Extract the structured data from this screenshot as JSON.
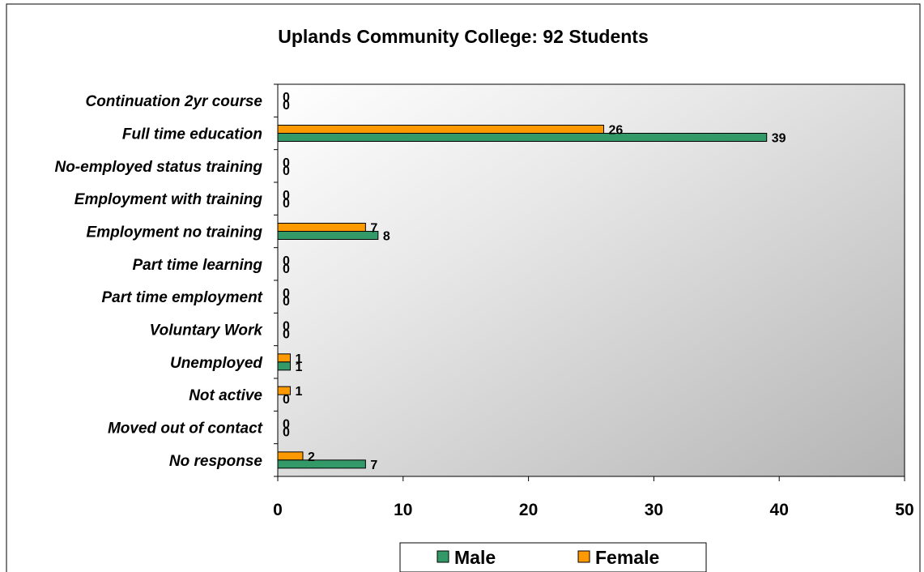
{
  "chart_data": {
    "type": "bar",
    "orientation": "horizontal",
    "title": "Uplands Community College: 92 Students",
    "categories": [
      "Continuation 2yr course",
      "Full time education",
      "No-employed status training",
      "Employment with training",
      "Employment no training",
      "Part time learning",
      "Part time employment",
      "Voluntary Work",
      "Unemployed",
      "Not active",
      "Moved out of contact",
      "No response"
    ],
    "series": [
      {
        "name": "Female",
        "color": "#FF9900",
        "values": [
          0,
          26,
          0,
          0,
          7,
          0,
          0,
          0,
          1,
          1,
          0,
          2
        ]
      },
      {
        "name": "Male",
        "color": "#339966",
        "values": [
          0,
          39,
          0,
          0,
          8,
          0,
          0,
          0,
          1,
          0,
          0,
          7
        ]
      }
    ],
    "xlim": [
      0,
      50
    ],
    "xticks": [
      "0",
      "10",
      "20",
      "30",
      "40",
      "50"
    ],
    "legend_order": [
      "Male",
      "Female"
    ],
    "legend_position": "bottom",
    "grid": false,
    "plot_background": "gradient white to grey"
  }
}
